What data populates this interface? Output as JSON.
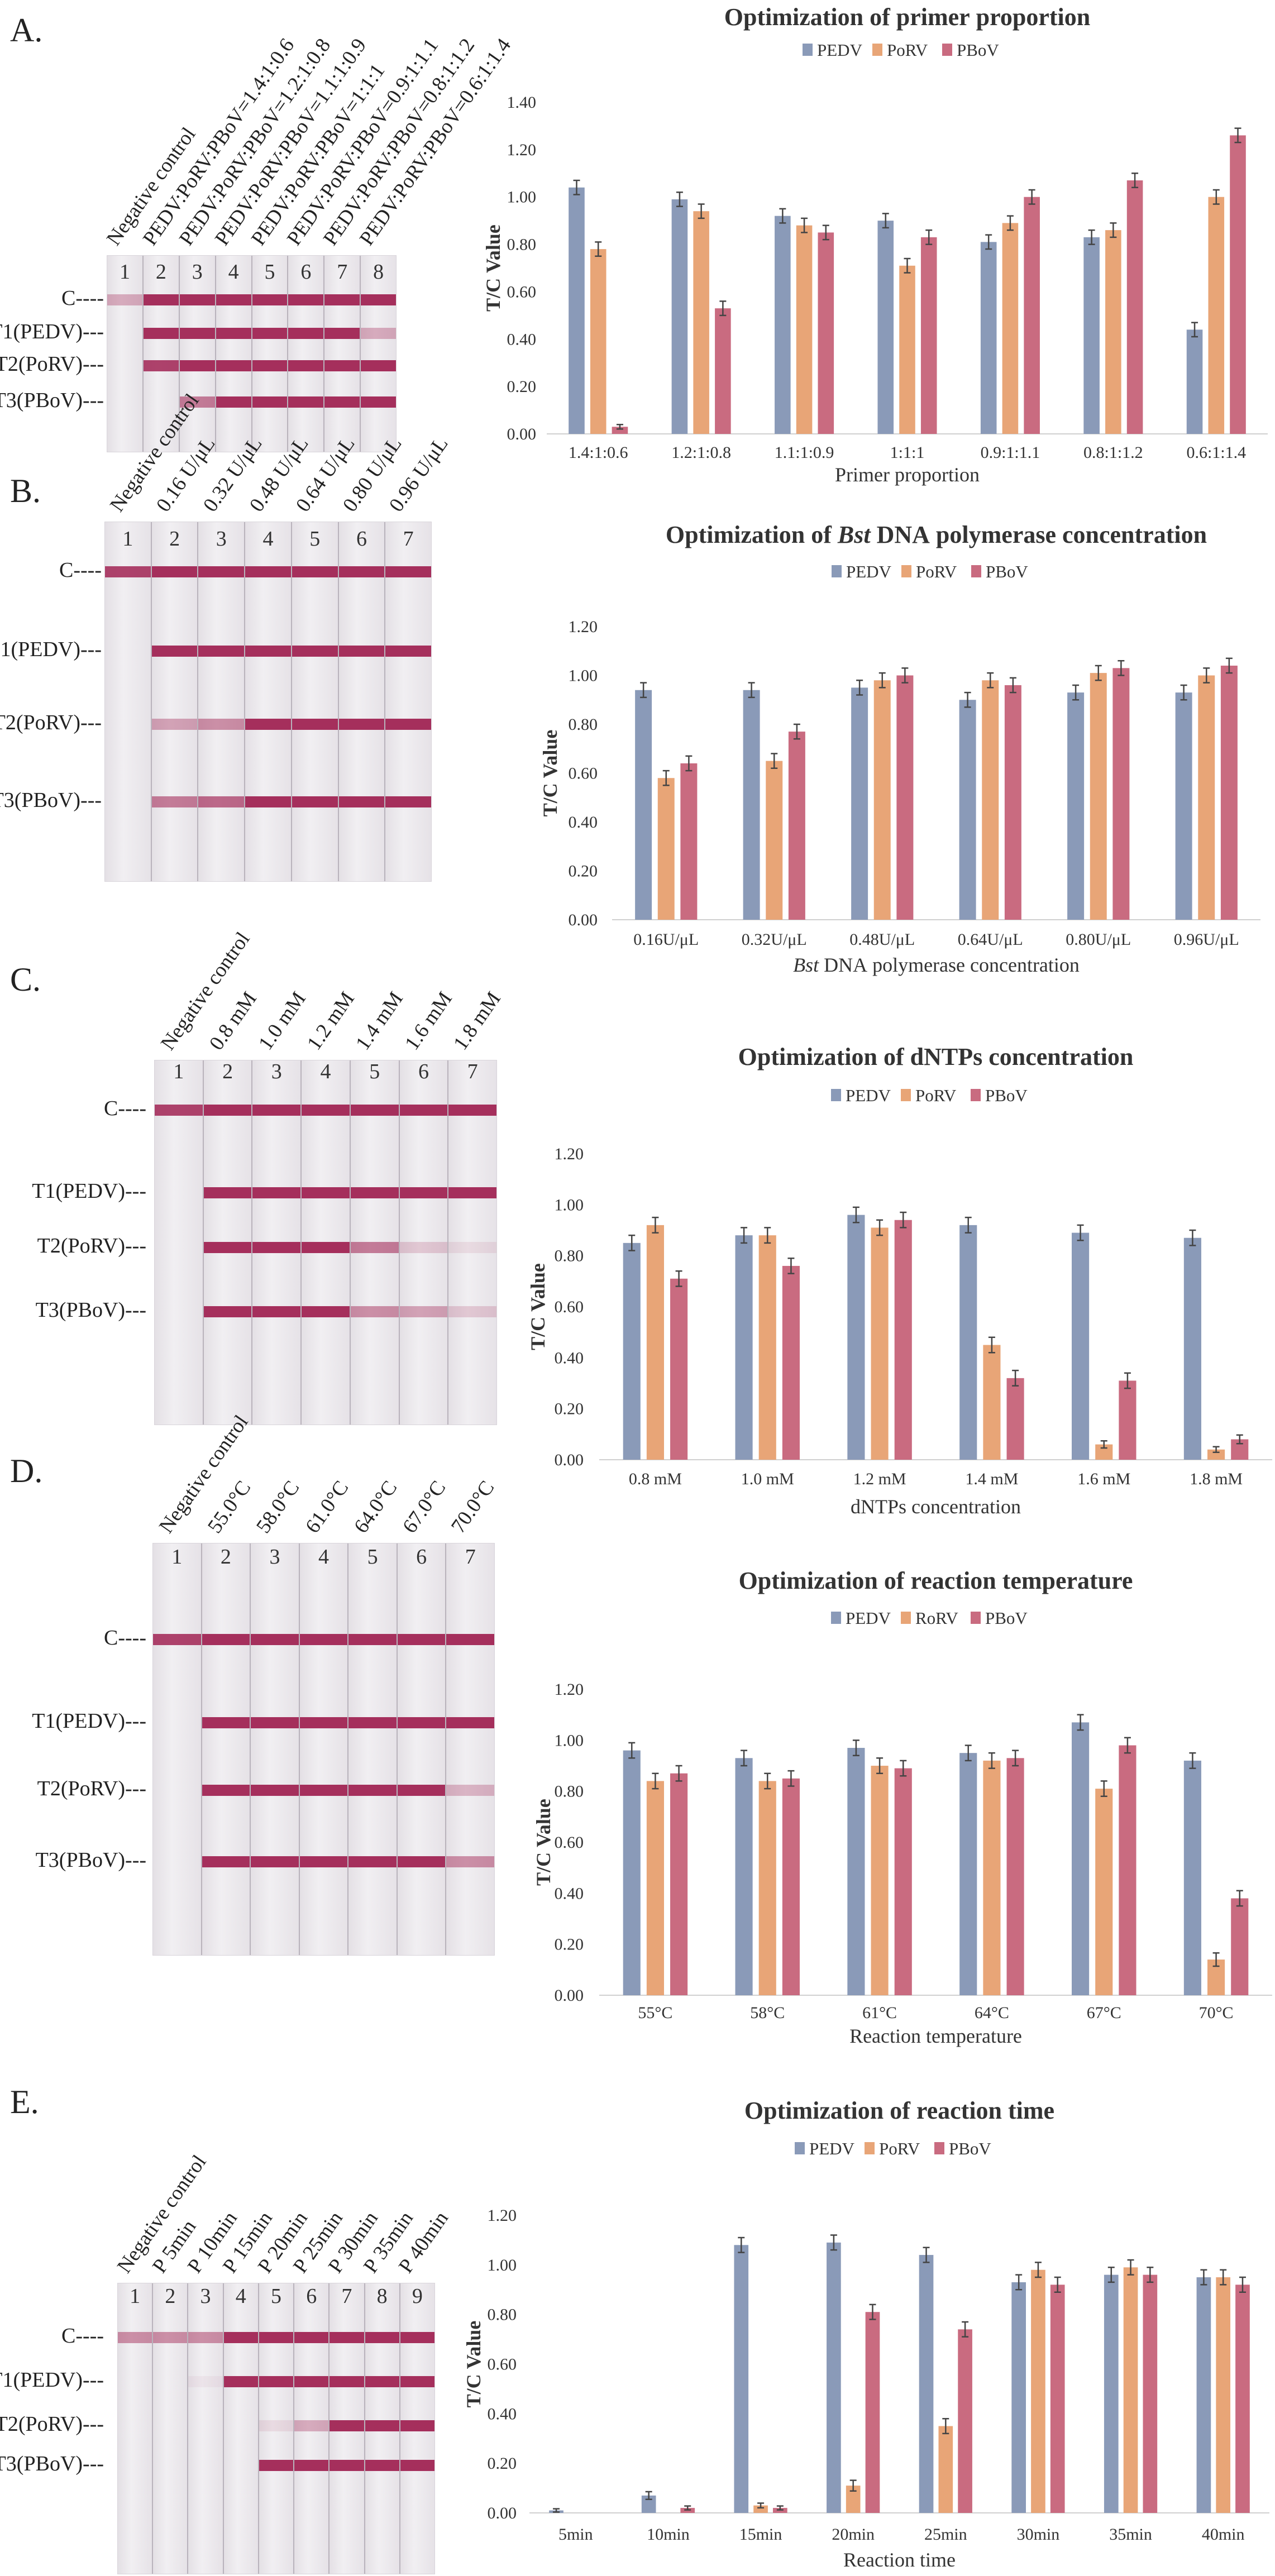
{
  "colors": {
    "PEDV": "#8a9ab8",
    "PoRV": "#e8a577",
    "PBoV": "#c96b80",
    "band": "#a52f5c"
  },
  "panels": [
    {
      "label": "A.",
      "row_labels": [
        "C----",
        "T1(PEDV)---",
        "T2(PoRV)---",
        "T3(PBoV)---"
      ],
      "lane_numbers": [
        "1",
        "2",
        "3",
        "4",
        "5",
        "6",
        "7",
        "8"
      ],
      "lane_labels": [
        "Negative control",
        "PEDV:PoRV:PBoV=1.4:1:0.6",
        "PEDV:PoRV:PBoV=1.2:1:0.8",
        "PEDV:PoRV:PBoV=1.1:1:0.9",
        "PEDV:PoRV:PBoV=1:1:1",
        "PEDV:PoRV:PBoV=0.9:1:1.1",
        "PEDV:PoRV:PBoV=0.8:1:1.2",
        "PEDV:PoRV:PBoV=0.6:1:1.4"
      ],
      "band_intensity": {
        "C": [
          0.35,
          1,
          1,
          1,
          1,
          1,
          1,
          1
        ],
        "T1": [
          0,
          1,
          1,
          1,
          1,
          1,
          1,
          0.35
        ],
        "T2": [
          0,
          0.9,
          1,
          1,
          1,
          1,
          1,
          1
        ],
        "T3": [
          0,
          0,
          0.6,
          1,
          1,
          1,
          1,
          1
        ]
      }
    },
    {
      "label": "B.",
      "row_labels": [
        "C----",
        "T1(PEDV)---",
        "T2(PoRV)---",
        "T3(PBoV)---"
      ],
      "lane_numbers": [
        "1",
        "2",
        "3",
        "4",
        "5",
        "6",
        "7"
      ],
      "lane_labels": [
        "Negative control",
        "0.16 U/μL",
        "0.32 U/μL",
        "0.48 U/μL",
        "0.64 U/μL",
        "0.80 U/μL",
        "0.96 U/μL"
      ],
      "band_intensity": {
        "C": [
          0.9,
          1,
          1,
          1,
          1,
          1,
          1
        ],
        "T1": [
          0,
          1,
          1,
          1,
          1,
          1,
          1
        ],
        "T2": [
          0,
          0.4,
          0.5,
          1,
          1,
          1,
          1
        ],
        "T3": [
          0,
          0.6,
          0.7,
          1,
          1,
          1,
          1
        ]
      }
    },
    {
      "label": "C.",
      "row_labels": [
        "C----",
        "T1(PEDV)---",
        "T2(PoRV)---",
        "T3(PBoV)---"
      ],
      "lane_numbers": [
        "1",
        "2",
        "3",
        "4",
        "5",
        "6",
        "7"
      ],
      "lane_labels": [
        "Negative control",
        "0.8 mM",
        "1.0 mM",
        "1.2 mM",
        "1.4 mM",
        "1.6 mM",
        "1.8 mM"
      ],
      "band_intensity": {
        "C": [
          0.9,
          1,
          1,
          1,
          1,
          1,
          1
        ],
        "T1": [
          0,
          1,
          1,
          1,
          1,
          1,
          1
        ],
        "T2": [
          0,
          1,
          1,
          1,
          0.6,
          0.2,
          0.1
        ],
        "T3": [
          0,
          1,
          1,
          1,
          0.5,
          0.4,
          0.2
        ]
      }
    },
    {
      "label": "D.",
      "row_labels": [
        "C----",
        "T1(PEDV)---",
        "T2(PoRV)---",
        "T3(PBoV)---"
      ],
      "lane_numbers": [
        "1",
        "2",
        "3",
        "4",
        "5",
        "6",
        "7"
      ],
      "lane_labels": [
        "Negative control",
        "55.0°C",
        "58.0°C",
        "61.0°C",
        "64.0°C",
        "67.0°C",
        "70.0°C"
      ],
      "band_intensity": {
        "C": [
          0.9,
          1,
          1,
          1,
          1,
          1,
          1
        ],
        "T1": [
          0,
          1,
          1,
          1,
          1,
          1,
          1
        ],
        "T2": [
          0,
          1,
          1,
          1,
          1,
          1,
          0.3
        ],
        "T3": [
          0,
          1,
          1,
          1,
          1,
          1,
          0.5
        ]
      }
    },
    {
      "label": "E.",
      "row_labels": [
        "C----",
        "T1(PEDV)---",
        "T2(PoRV)---",
        "T3(PBoV)---"
      ],
      "lane_numbers": [
        "1",
        "2",
        "3",
        "4",
        "5",
        "6",
        "7",
        "8",
        "9"
      ],
      "lane_labels": [
        "Negative control",
        "P 5min",
        "P 10min",
        "P 15min",
        "P 20min",
        "P 25min",
        "P 30min",
        "P 35min",
        "P 40min"
      ],
      "band_intensity": {
        "C": [
          0.5,
          0.5,
          0.5,
          1,
          1,
          1,
          1,
          1,
          1
        ],
        "T1": [
          0,
          0,
          0.05,
          1,
          1,
          1,
          1,
          1,
          1
        ],
        "T2": [
          0,
          0,
          0,
          0,
          0.1,
          0.35,
          1,
          1,
          1
        ],
        "T3": [
          0,
          0,
          0,
          0,
          1,
          1,
          1,
          1,
          1
        ]
      }
    }
  ],
  "chart_data": [
    {
      "type": "bar",
      "title_parts": [
        {
          "text": "Optimization of primer proportion",
          "italic": false
        }
      ],
      "xlabel_parts": [
        {
          "text": "Primer proportion",
          "italic": false
        }
      ],
      "ylabel": "T/C Value",
      "ylim": [
        0,
        1.4
      ],
      "ytick_step": 0.2,
      "yticks": [
        "0.00",
        "0.20",
        "0.40",
        "0.60",
        "0.80",
        "1.00",
        "1.20",
        "1.40"
      ],
      "legend": "top-center",
      "grid": false,
      "categories": [
        "1.4:1:0.6",
        "1.2:1:0.8",
        "1.1:1:0.9",
        "1:1:1",
        "0.9:1:1.1",
        "0.8:1:1.2",
        "0.6:1:1.4"
      ],
      "series": [
        {
          "name": "PEDV",
          "values": [
            1.04,
            0.99,
            0.92,
            0.9,
            0.81,
            0.83,
            0.44
          ]
        },
        {
          "name": "PoRV",
          "values": [
            0.78,
            0.94,
            0.88,
            0.71,
            0.89,
            0.86,
            1.0
          ]
        },
        {
          "name": "PBoV",
          "values": [
            0.03,
            0.53,
            0.85,
            0.83,
            1.0,
            1.07,
            1.26
          ]
        }
      ],
      "error": 0.03
    },
    {
      "type": "bar",
      "title_parts": [
        {
          "text": "Optimization of ",
          "italic": false
        },
        {
          "text": "Bst",
          "italic": true
        },
        {
          "text": " DNA polymerase concentration",
          "italic": false
        }
      ],
      "xlabel_parts": [
        {
          "text": "Bst",
          "italic": true
        },
        {
          "text": " DNA polymerase concentration",
          "italic": false
        }
      ],
      "ylabel": "T/C Value",
      "ylim": [
        0,
        1.2
      ],
      "ytick_step": 0.2,
      "yticks": [
        "0.00",
        "0.20",
        "0.40",
        "0.60",
        "0.80",
        "1.00",
        "1.20"
      ],
      "legend": "top-center",
      "grid": false,
      "categories": [
        "0.16U/μL",
        "0.32U/μL",
        "0.48U/μL",
        "0.64U/μL",
        "0.80U/μL",
        "0.96U/μL"
      ],
      "series": [
        {
          "name": "PEDV",
          "values": [
            0.94,
            0.94,
            0.95,
            0.9,
            0.93,
            0.93
          ]
        },
        {
          "name": "PoRV",
          "values": [
            0.58,
            0.65,
            0.98,
            0.98,
            1.01,
            1.0
          ]
        },
        {
          "name": "PBoV",
          "values": [
            0.64,
            0.77,
            1.0,
            0.96,
            1.03,
            1.04
          ]
        }
      ],
      "error": 0.03
    },
    {
      "type": "bar",
      "title_parts": [
        {
          "text": "Optimization of dNTPs concentration",
          "italic": false
        }
      ],
      "xlabel_parts": [
        {
          "text": "dNTPs concentration",
          "italic": false
        }
      ],
      "ylabel": "T/C Value",
      "ylim": [
        0,
        1.2
      ],
      "ytick_step": 0.2,
      "yticks": [
        "0.00",
        "0.20",
        "0.40",
        "0.60",
        "0.80",
        "1.00",
        "1.20"
      ],
      "legend": "top-center",
      "grid": false,
      "categories": [
        "0.8 mM",
        "1.0 mM",
        "1.2 mM",
        "1.4 mM",
        "1.6 mM",
        "1.8 mM"
      ],
      "series": [
        {
          "name": "PEDV",
          "values": [
            0.85,
            0.88,
            0.96,
            0.92,
            0.89,
            0.87
          ]
        },
        {
          "name": "PoRV",
          "values": [
            0.92,
            0.88,
            0.91,
            0.45,
            0.06,
            0.04
          ]
        },
        {
          "name": "PBoV",
          "values": [
            0.71,
            0.76,
            0.94,
            0.32,
            0.31,
            0.08
          ]
        }
      ],
      "error": 0.03
    },
    {
      "type": "bar",
      "title_parts": [
        {
          "text": "Optimization of reaction temperature",
          "italic": false
        }
      ],
      "xlabel_parts": [
        {
          "text": "Reaction temperature",
          "italic": false
        }
      ],
      "ylabel": "T/C Value",
      "ylim": [
        0,
        1.2
      ],
      "ytick_step": 0.2,
      "yticks": [
        "0.00",
        "0.20",
        "0.40",
        "0.60",
        "0.80",
        "1.00",
        "1.20"
      ],
      "legend": "top-center",
      "grid": false,
      "categories": [
        "55°C",
        "58°C",
        "61°C",
        "64°C",
        "67°C",
        "70°C"
      ],
      "series": [
        {
          "name": "PEDV",
          "values": [
            0.96,
            0.93,
            0.97,
            0.95,
            1.07,
            0.92
          ]
        },
        {
          "name": "RoRV",
          "values": [
            0.84,
            0.84,
            0.9,
            0.92,
            0.81,
            0.14
          ]
        },
        {
          "name": "PBoV",
          "values": [
            0.87,
            0.85,
            0.89,
            0.93,
            0.98,
            0.38
          ]
        }
      ],
      "error": 0.03
    },
    {
      "type": "bar",
      "title_parts": [
        {
          "text": "Optimization of reaction time",
          "italic": false
        }
      ],
      "xlabel_parts": [
        {
          "text": "Reaction time",
          "italic": false
        }
      ],
      "ylabel": "T/C Value",
      "ylim": [
        0,
        1.2
      ],
      "ytick_step": 0.2,
      "yticks": [
        "0.00",
        "0.20",
        "0.40",
        "0.60",
        "0.80",
        "1.00",
        "1.20"
      ],
      "legend": "top-center",
      "grid": false,
      "categories": [
        "5min",
        "10min",
        "15min",
        "20min",
        "25min",
        "30min",
        "35min",
        "40min"
      ],
      "series": [
        {
          "name": "PEDV",
          "values": [
            0.01,
            0.07,
            1.08,
            1.09,
            1.04,
            0.93,
            0.96,
            0.95
          ]
        },
        {
          "name": "PoRV",
          "values": [
            0.0,
            0.0,
            0.03,
            0.11,
            0.35,
            0.98,
            0.99,
            0.95
          ]
        },
        {
          "name": "PBoV",
          "values": [
            0.0,
            0.02,
            0.02,
            0.81,
            0.74,
            0.92,
            0.96,
            0.92
          ]
        }
      ],
      "error": 0.03
    }
  ]
}
